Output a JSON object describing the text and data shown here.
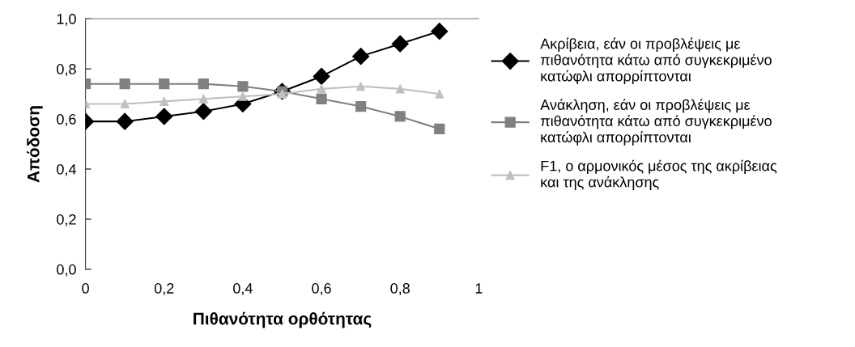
{
  "chart_data": {
    "type": "line",
    "xlabel": "Πιθανότητα ορθότητας",
    "ylabel": "Απόδοση",
    "x": [
      0,
      0.1,
      0.2,
      0.3,
      0.4,
      0.5,
      0.6,
      0.7,
      0.8,
      0.9
    ],
    "series": [
      {
        "name": "Ακρίβεια, εάν οι προβλέψεις με πιθανότητα κάτω από συγκεκριμένο κατώφλι απορρίπτονται",
        "color": "#000000",
        "marker": "diamond",
        "values": [
          0.59,
          0.59,
          0.61,
          0.63,
          0.66,
          0.71,
          0.77,
          0.85,
          0.9,
          0.95
        ]
      },
      {
        "name": "Ανάκληση, εάν οι προβλέψεις με πιθανότητα κάτω από συγκεκριμένο κατώφλι απορρίπτονται",
        "color": "#808080",
        "marker": "square",
        "values": [
          0.74,
          0.74,
          0.74,
          0.74,
          0.73,
          0.71,
          0.68,
          0.65,
          0.61,
          0.56
        ]
      },
      {
        "name": "F1, ο αρμονικός μέσος της ακρίβειας και της ανάκλησης",
        "color": "#c0c0c0",
        "marker": "triangle",
        "values": [
          0.66,
          0.66,
          0.67,
          0.68,
          0.69,
          0.7,
          0.72,
          0.73,
          0.72,
          0.7
        ]
      }
    ],
    "xlim": [
      0,
      1
    ],
    "xticks": [
      0,
      {
        "value": 0.2,
        "label": "0,2"
      },
      {
        "value": 0.4,
        "label": "0,4"
      },
      {
        "value": 0.6,
        "label": "0,6"
      },
      {
        "value": 0.8,
        "label": "0,8"
      },
      1
    ],
    "ylim": [
      0,
      1
    ],
    "yticks": [
      {
        "value": 0,
        "label": "0,0"
      },
      {
        "value": 0.2,
        "label": "0,2"
      },
      {
        "value": 0.4,
        "label": "0,4"
      },
      {
        "value": 0.6,
        "label": "0,6"
      },
      {
        "value": 0.8,
        "label": "0,8"
      },
      {
        "value": 1,
        "label": "1,0"
      }
    ],
    "grid": false,
    "legend": "right",
    "line_style": "solid"
  }
}
